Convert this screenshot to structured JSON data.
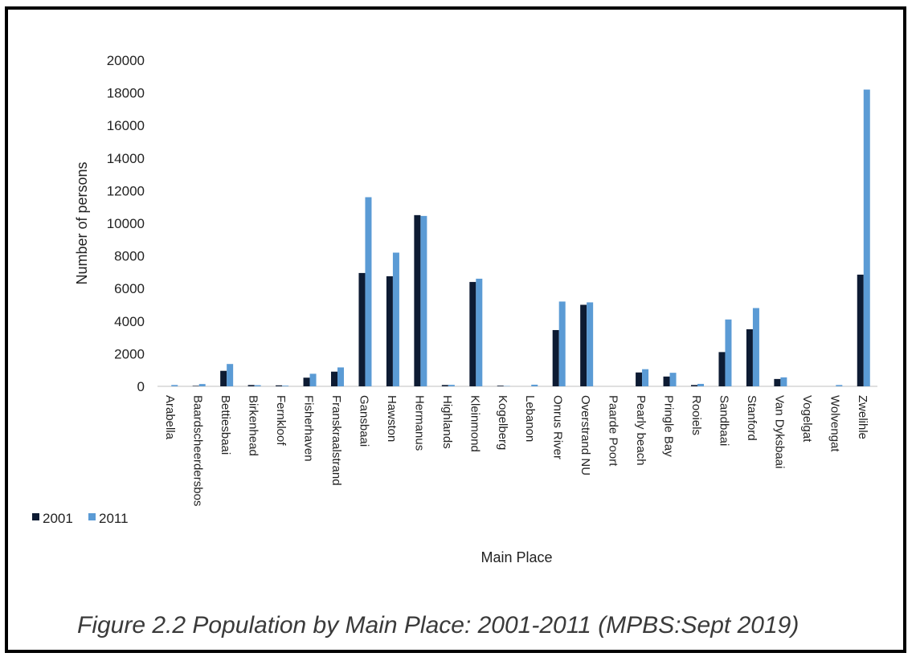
{
  "caption": "Figure 2.2 Population by Main Place: 2001-2011 (MPBS:Sept 2019)",
  "chart_data": {
    "type": "bar",
    "xlabel": "Main Place",
    "ylabel": "Number of persons",
    "ylim": [
      0,
      20000
    ],
    "yticks": [
      "0",
      "2000",
      "4000",
      "6000",
      "8000",
      "10000",
      "12000",
      "14000",
      "16000",
      "18000",
      "20000"
    ],
    "grid": false,
    "legend_position": "left",
    "categories": [
      "Arabella",
      "Baardscheerdersbos",
      "Bettiesbaai",
      "Birkenhead",
      "Fernkloof",
      "Fisherhaven",
      "Franskraalstrand",
      "Gansbaai",
      "Hawston",
      "Hermanus",
      "Highlands",
      "Kleinmond",
      "Kogelberg",
      "Lebanon",
      "Onrus River",
      "Overstrand NU",
      "Paarde Poort",
      "Pearly beach",
      "Pringle Bay",
      "Rooiels",
      "Sandbaai",
      "Stanford",
      "Van Dyksbaai",
      "Vogelgat",
      "Wolvengat",
      "Zwelihle"
    ],
    "series": [
      {
        "name": "2001",
        "color": "#0d1b33",
        "values": [
          0,
          30,
          950,
          80,
          60,
          530,
          900,
          6950,
          6750,
          10500,
          80,
          6400,
          40,
          0,
          3450,
          5000,
          0,
          850,
          600,
          80,
          2100,
          3500,
          450,
          0,
          0,
          6850
        ]
      },
      {
        "name": "2011",
        "color": "#5b9bd5",
        "values": [
          80,
          140,
          1370,
          70,
          40,
          770,
          1160,
          11600,
          8200,
          10450,
          90,
          6600,
          20,
          100,
          5200,
          5150,
          0,
          1050,
          830,
          150,
          4100,
          4800,
          550,
          0,
          80,
          18200
        ]
      }
    ]
  }
}
